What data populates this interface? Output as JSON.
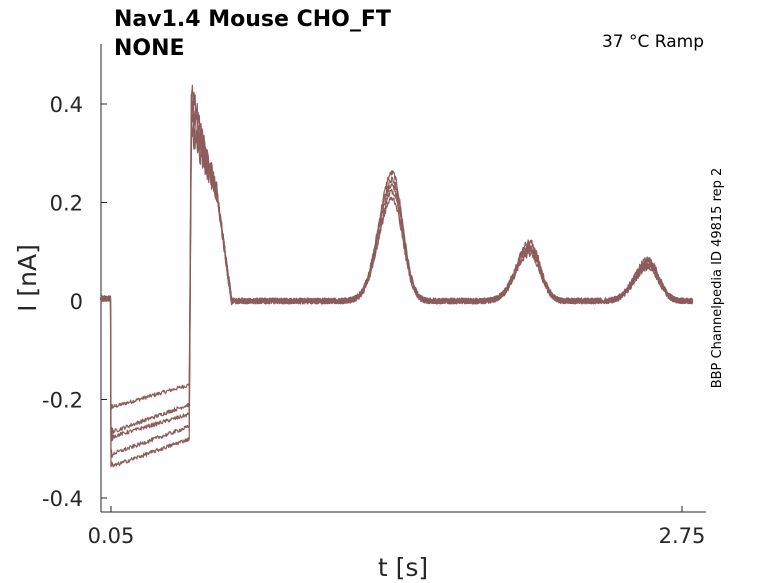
{
  "chart_data": {
    "type": "line",
    "title": [
      "Nav1.4  Mouse  CHO_FT",
      "NONE"
    ],
    "annotation": "37 °C  Ramp",
    "side_label": "BBP Channelpedia ID 49815 rep 2",
    "xlabel": "t [s]",
    "ylabel": "I [nA]",
    "xlim": [
      0.0,
      2.8
    ],
    "ylim": [
      -0.43,
      0.52
    ],
    "x_ticks": [
      0.05,
      2.75
    ],
    "x_tick_labels": [
      "0.05",
      "2.75"
    ],
    "y_ticks": [
      -0.4,
      -0.2,
      0,
      0.2,
      0.4
    ],
    "y_tick_labels": [
      "-0.4",
      "-0.2",
      "0",
      "0.2",
      "0.4"
    ],
    "grid": false,
    "line_color": "#8c5c5c",
    "sweeps": [
      {
        "baseline_start": -0.215,
        "baseline_end": -0.17,
        "peak": 0.43
      },
      {
        "baseline_start": -0.265,
        "baseline_end": -0.21,
        "peak": 0.4
      },
      {
        "baseline_start": -0.275,
        "baseline_end": -0.23,
        "peak": 0.38
      },
      {
        "baseline_start": -0.31,
        "baseline_end": -0.255,
        "peak": 0.36
      },
      {
        "baseline_start": -0.335,
        "baseline_end": -0.28,
        "peak": 0.34
      }
    ],
    "secondary_peaks": [
      {
        "t": 1.38,
        "height": 0.26
      },
      {
        "t": 2.03,
        "height": 0.12
      },
      {
        "t": 2.59,
        "height": 0.085
      }
    ]
  }
}
